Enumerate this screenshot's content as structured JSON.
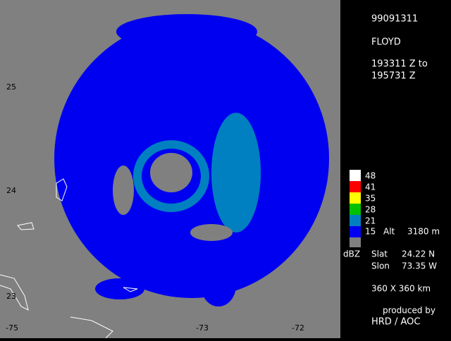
{
  "header": {
    "date": "99091311",
    "storm": "FLOYD",
    "time_from": "193311 Z to",
    "time_to": "195731 Z"
  },
  "axes": {
    "x_labels": [
      "-75",
      "-73",
      "-72"
    ],
    "y_labels": [
      "25",
      "24",
      "23"
    ]
  },
  "legend": {
    "levels": [
      "48",
      "41",
      "35",
      "28",
      "21",
      "15"
    ],
    "unit": "dBZ",
    "alt_label": "Alt",
    "alt_value": "3180 m"
  },
  "info": {
    "slat_label": "Slat",
    "slat_value": "24.22 N",
    "slon_label": "Slon",
    "slon_value": "73.35 W",
    "domain": "360 X 360 km"
  },
  "footer": {
    "produced_by": "produced by",
    "org": "HRD / AOC"
  }
}
